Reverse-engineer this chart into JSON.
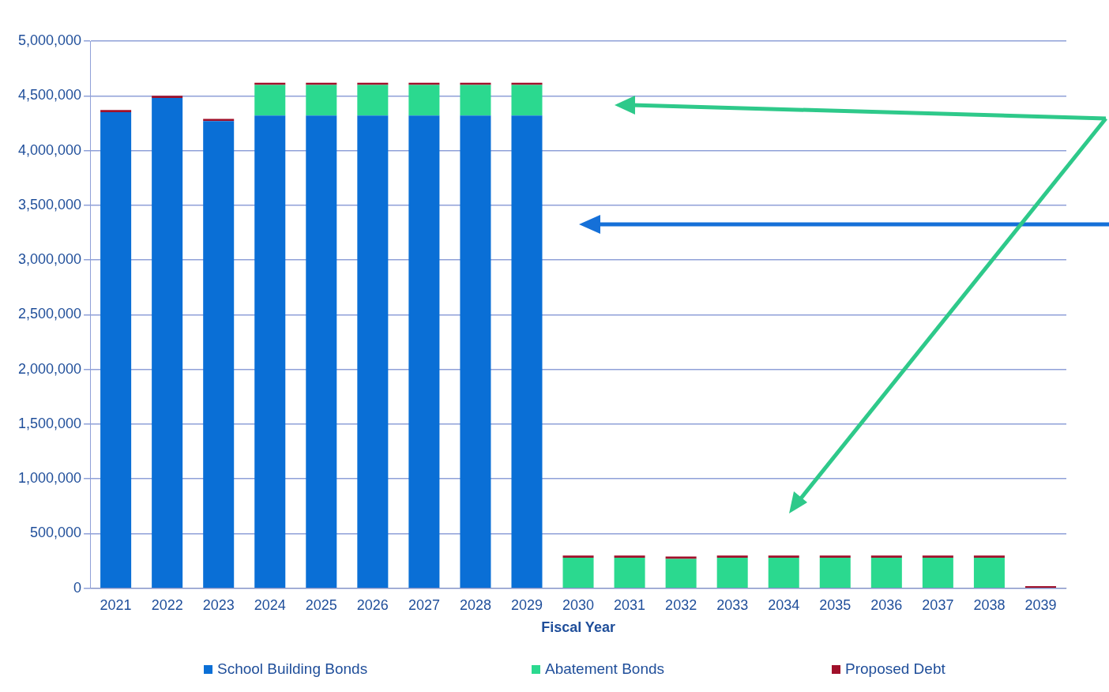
{
  "chart_data": {
    "type": "bar",
    "stacked": true,
    "xlabel": "Fiscal Year",
    "categories": [
      "2021",
      "2022",
      "2023",
      "2024",
      "2025",
      "2026",
      "2027",
      "2028",
      "2029",
      "2030",
      "2031",
      "2032",
      "2033",
      "2034",
      "2035",
      "2036",
      "2037",
      "2038",
      "2039"
    ],
    "series": [
      {
        "name": "School Building Bonds",
        "color": "#0a6fd6",
        "values": [
          4350000,
          4480000,
          4270000,
          4320000,
          4320000,
          4320000,
          4320000,
          4320000,
          4320000,
          0,
          0,
          0,
          0,
          0,
          0,
          0,
          0,
          0,
          0
        ]
      },
      {
        "name": "Abatement Bonds",
        "color": "#2bd98f",
        "values": [
          0,
          0,
          0,
          280000,
          280000,
          280000,
          280000,
          280000,
          280000,
          280000,
          280000,
          270000,
          280000,
          280000,
          280000,
          280000,
          280000,
          280000,
          0
        ]
      },
      {
        "name": "Proposed Debt",
        "color": "#a0102a",
        "values": [
          20000,
          20000,
          20000,
          20000,
          20000,
          20000,
          20000,
          20000,
          20000,
          20000,
          20000,
          20000,
          20000,
          20000,
          20000,
          20000,
          20000,
          20000,
          20000
        ]
      }
    ],
    "ylim": [
      0,
      5000000
    ],
    "yticks": [
      {
        "value": 0,
        "label": "0"
      },
      {
        "value": 500000,
        "label": "500,000"
      },
      {
        "value": 1000000,
        "label": "1,000,000"
      },
      {
        "value": 1500000,
        "label": "1,500,000"
      },
      {
        "value": 2000000,
        "label": "2,000,000"
      },
      {
        "value": 2500000,
        "label": "2,500,000"
      },
      {
        "value": 3000000,
        "label": "3,000,000"
      },
      {
        "value": 3500000,
        "label": "3,500,000"
      },
      {
        "value": 4000000,
        "label": "4,000,000"
      },
      {
        "value": 4500000,
        "label": "4,500,000"
      },
      {
        "value": 5000000,
        "label": "5,000,000"
      }
    ],
    "grid": "y",
    "legend": "bottom"
  }
}
